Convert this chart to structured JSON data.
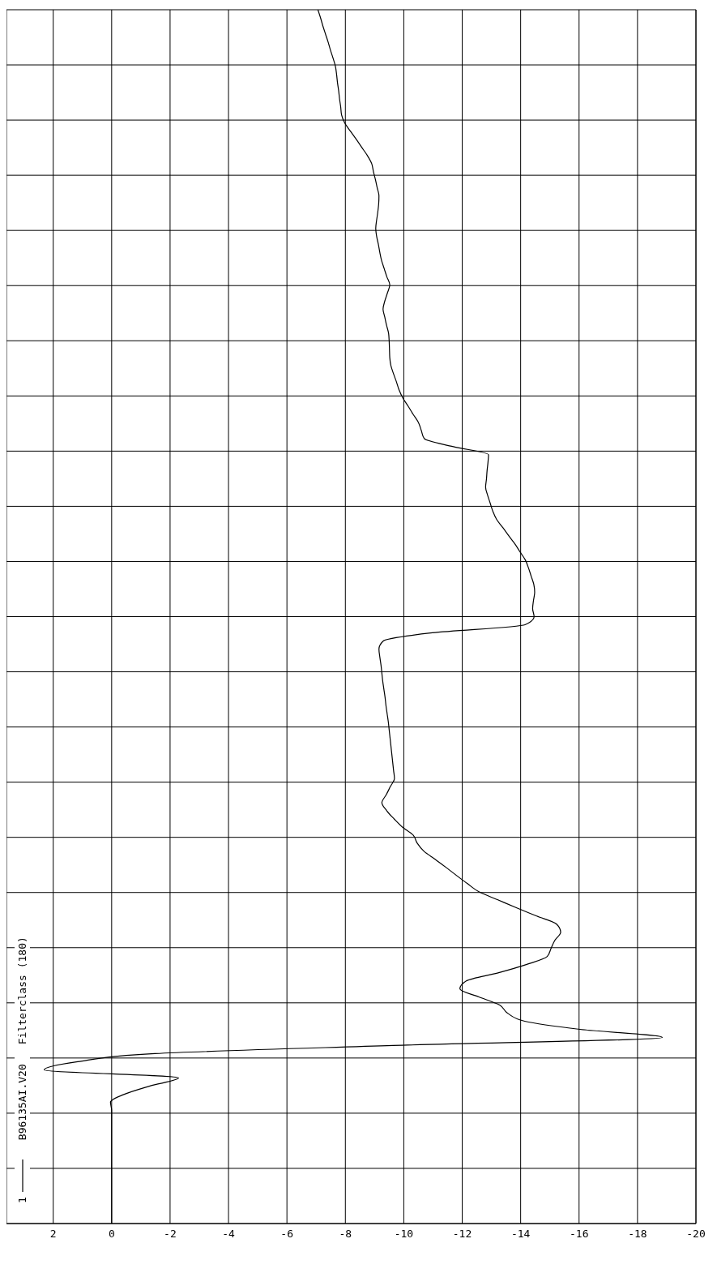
{
  "chart_data": {
    "type": "line",
    "orientation": "horizontal",
    "categories": [
      null,
      null,
      null,
      null,
      null,
      null,
      null,
      null,
      null,
      null,
      null,
      null,
      null,
      null,
      null,
      null,
      null,
      null,
      null,
      null,
      null,
      null,
      null,
      null,
      null,
      null,
      null,
      null,
      null,
      null,
      null,
      null,
      null,
      null,
      null,
      null,
      null,
      null,
      null,
      null,
      null,
      null,
      null,
      null,
      null,
      null,
      null,
      null,
      null,
      null,
      null,
      null,
      null,
      null,
      null,
      null,
      null,
      null,
      null,
      null,
      null,
      null,
      null,
      null,
      null,
      null,
      null,
      null,
      null,
      null,
      null,
      null,
      null,
      null,
      null,
      null,
      null,
      null,
      null,
      null,
      null,
      null,
      null,
      null,
      null,
      null,
      null,
      null,
      null,
      null,
      null,
      null,
      null,
      null,
      null,
      null,
      null,
      null,
      null,
      null,
      null,
      null,
      null,
      null,
      null,
      null,
      null,
      null,
      null,
      null,
      null,
      null,
      null,
      null,
      null,
      null,
      null,
      null,
      null,
      null,
      null,
      null,
      null,
      null,
      null,
      null,
      null,
      null,
      null,
      null,
      null,
      null,
      null,
      null,
      null,
      null,
      null,
      null,
      null,
      null,
      null,
      null,
      null,
      null,
      null,
      null,
      null,
      null,
      null,
      null,
      null
    ],
    "series": [
      {
        "name": "1",
        "color": "#000000",
        "values": [
          -7.06,
          -7.15,
          -7.23,
          -7.32,
          -7.41,
          -7.49,
          -7.58,
          -7.66,
          -7.7,
          -7.73,
          -7.77,
          -7.8,
          -7.84,
          -7.87,
          -7.98,
          -8.17,
          -8.37,
          -8.56,
          -8.75,
          -8.9,
          -8.96,
          -9.03,
          -9.09,
          -9.15,
          -9.14,
          -9.11,
          -9.07,
          -9.04,
          -9.07,
          -9.13,
          -9.18,
          -9.24,
          -9.33,
          -9.42,
          -9.52,
          -9.44,
          -9.35,
          -9.29,
          -9.35,
          -9.41,
          -9.48,
          -9.5,
          -9.51,
          -9.52,
          -9.56,
          -9.65,
          -9.75,
          -9.84,
          -9.97,
          -10.15,
          -10.32,
          -10.5,
          -10.6,
          -10.7,
          -11.7,
          -12.9,
          -12.88,
          -12.85,
          -12.83,
          -12.8,
          -12.87,
          -12.96,
          -13.05,
          -13.18,
          -13.39,
          -13.59,
          -13.8,
          -13.98,
          -14.16,
          -14.27,
          -14.36,
          -14.45,
          -14.48,
          -14.44,
          -14.41,
          -14.46,
          -14.15,
          -10.98,
          -9.3,
          -9.15,
          -9.18,
          -9.22,
          -9.25,
          -9.28,
          -9.32,
          -9.36,
          -9.39,
          -9.43,
          -9.47,
          -9.5,
          -9.53,
          -9.56,
          -9.59,
          -9.62,
          -9.65,
          -9.68,
          -9.54,
          -9.4,
          -9.25,
          -9.42,
          -9.67,
          -9.95,
          -10.32,
          -10.46,
          -10.69,
          -11.08,
          -11.45,
          -11.81,
          -12.18,
          -12.57,
          -13.22,
          -13.87,
          -14.55,
          -15.23,
          -15.37,
          -15.17,
          -15.04,
          -14.91,
          -14.19,
          -13.25,
          -12.15,
          -11.92,
          -12.57,
          -13.28,
          -13.55,
          -14.14,
          -16.03,
          -18.85,
          -9.63,
          -1.48,
          1.16,
          2.31,
          -2.29,
          -1.31,
          -0.45,
          0.04,
          0,
          0,
          0,
          0,
          0,
          0,
          0,
          0,
          0,
          0,
          0,
          0,
          0,
          0,
          0
        ]
      }
    ],
    "xlim": [
      3.6,
      -20
    ],
    "xticks": [
      2,
      0,
      -2,
      -4,
      -6,
      -8,
      -10,
      -12,
      -14,
      -16,
      -18,
      -20
    ],
    "grid": true,
    "legend": "bottom left",
    "annotations": [
      "B96135AI.V20",
      "Filterclass (180)"
    ]
  }
}
